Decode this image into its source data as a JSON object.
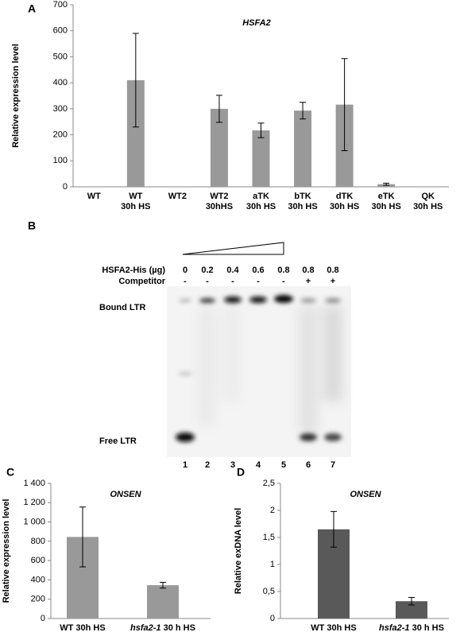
{
  "chart_data": [
    {
      "type": "bar",
      "panel_label": "A",
      "title": "HSFA2",
      "ylabel": "Relative expression level",
      "categories": [
        [
          "WT"
        ],
        [
          "WT",
          "30h HS"
        ],
        [
          "WT2"
        ],
        [
          "WT2",
          "30hHS"
        ],
        [
          "aTK",
          "30h HS"
        ],
        [
          "bTK",
          "30h HS"
        ],
        [
          "dTK",
          "30h HS"
        ],
        [
          "eTK",
          "30h HS"
        ],
        [
          "QK",
          "30h HS"
        ]
      ],
      "values": [
        1,
        410,
        1,
        300,
        217,
        293,
        316,
        10,
        1
      ],
      "errors": [
        0,
        180,
        0,
        52,
        28,
        32,
        177,
        4,
        0
      ],
      "color": "#999999",
      "ylim": [
        0,
        700
      ],
      "yticks": [
        0,
        100,
        200,
        300,
        400,
        500,
        600,
        700
      ]
    },
    {
      "type": "bar",
      "panel_label": "C",
      "title": "ONSEN",
      "ylabel": "Relative expression level",
      "categories": [
        [
          "WT 30h HS"
        ],
        [
          "hsfa2-1",
          " 30 h HS"
        ]
      ],
      "values": [
        845,
        345
      ],
      "errors": [
        310,
        30
      ],
      "color": "#999999",
      "ylim": [
        0,
        1400
      ],
      "yticks": [
        0,
        200,
        400,
        600,
        800,
        {
          "value": 1000,
          "label": "1 000"
        },
        {
          "value": 1200,
          "label": "1 200"
        },
        {
          "value": 1400,
          "label": "1 400"
        }
      ]
    },
    {
      "type": "bar",
      "panel_label": "D",
      "title": "ONSEN",
      "ylabel": "Relative exDNA level",
      "categories": [
        [
          "WT 30h HS"
        ],
        [
          "hsfa2-1",
          " 30 h HS"
        ]
      ],
      "values": [
        1.65,
        0.32
      ],
      "errors": [
        0.33,
        0.07
      ],
      "color": "#595959",
      "ylim": [
        0,
        2.5
      ],
      "yticks": [
        0,
        {
          "value": 0.5,
          "label": "0,5"
        },
        1,
        {
          "value": 1.5,
          "label": "1,5"
        },
        2,
        {
          "value": 2.5,
          "label": "2,5"
        }
      ]
    }
  ],
  "gel": {
    "panel_label": "B",
    "protein_label": "HSFA2-His (µg)",
    "amounts": [
      "0",
      "0.2",
      "0.4",
      "0.6",
      "0.8",
      "0.8",
      "0.8"
    ],
    "competitor_label": "Competitor",
    "competitor": [
      "-",
      "-",
      "-",
      "-",
      "-",
      "+",
      "+"
    ],
    "bound_label": "Bound LTR",
    "free_label": "Free LTR",
    "lanes": [
      "1",
      "2",
      "3",
      "4",
      "5",
      "6",
      "7"
    ]
  }
}
